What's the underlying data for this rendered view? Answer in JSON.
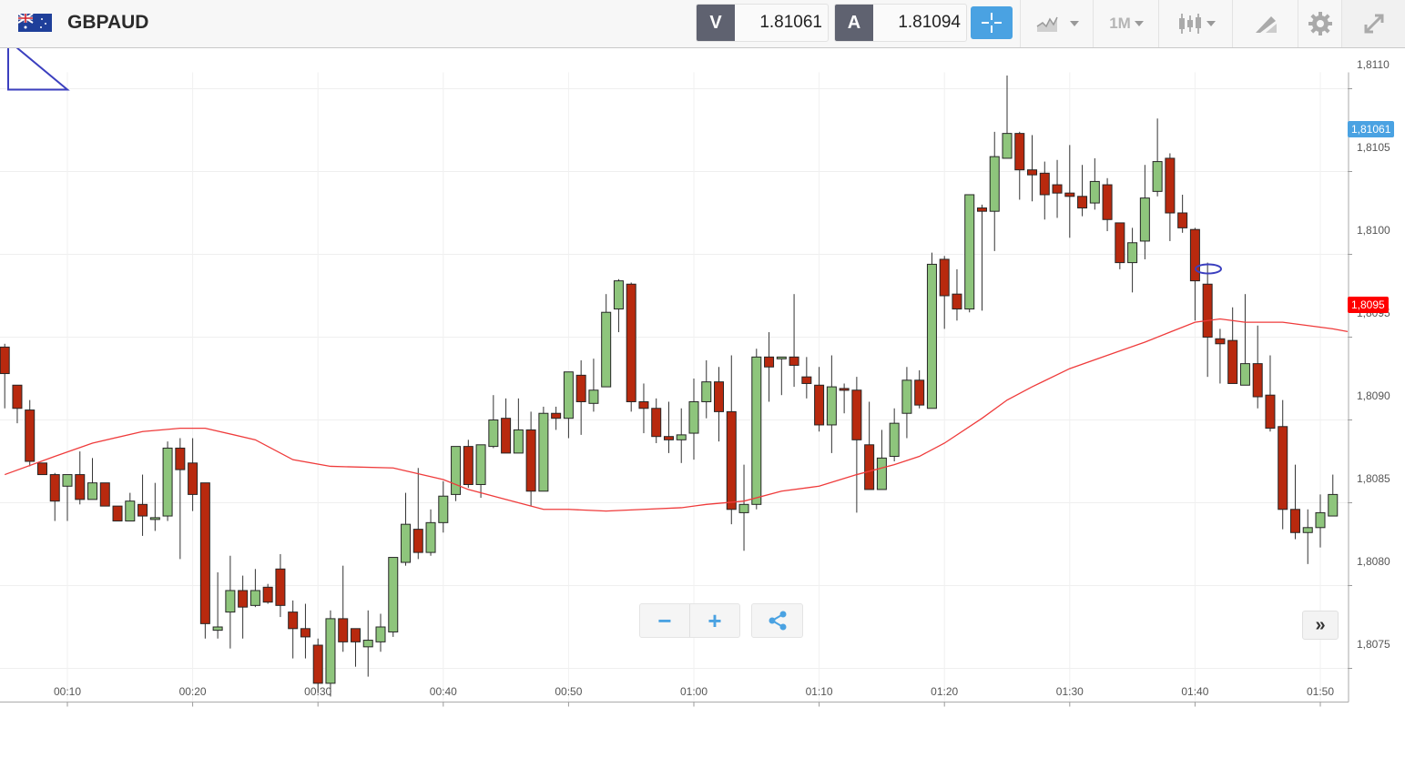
{
  "header": {
    "symbol": "GBPAUD",
    "flag_icon": "gb-au-flag-icon",
    "bid_label": "V",
    "bid_value": "1.81061",
    "ask_label": "A",
    "ask_value": "1.81094",
    "timeframe": "1M",
    "icons": [
      "crosshair-icon",
      "chart-type-icon",
      "timeframe-dropdown",
      "candlestick-icon",
      "drawing-tool-icon",
      "gear-icon",
      "fullscreen-icon"
    ]
  },
  "controls": {
    "zoom_out": "−",
    "zoom_in": "+",
    "share_icon": "share-icon",
    "scroll_end": "»"
  },
  "colors": {
    "up": "#8ec57c",
    "down": "#b8290e",
    "ma": "#ef3b3b",
    "bid_tag": "#4aa2e2",
    "ma_tag": "#ff0000",
    "accent": "#4aa2e2"
  },
  "chart_data": {
    "type": "candlestick",
    "title": "GBPAUD",
    "interval": "1M",
    "first_time": "00:05",
    "ylim": [
      1.80735,
      1.81117
    ],
    "y_ticks": [
      "1,8075",
      "1,8080",
      "1,8085",
      "1,8090",
      "1,8095",
      "1,8100",
      "1,8105",
      "1,8110"
    ],
    "y_tick_values": [
      1.8075,
      1.808,
      1.8085,
      1.809,
      1.8095,
      1.81,
      1.8105,
      1.811
    ],
    "x_ticks": [
      "00:10",
      "00:20",
      "00:30",
      "00:40",
      "00:50",
      "01:00",
      "01:10",
      "01:20",
      "01:30",
      "01:40",
      "01:50"
    ],
    "grid": true,
    "price_tags": [
      {
        "label": "1,81061",
        "value": 1.81061,
        "color": "#4aa2e2"
      },
      {
        "label": "1,8095",
        "value": 1.80955,
        "color": "#ff0000"
      }
    ],
    "ohlc_fields": [
      "open",
      "high",
      "low",
      "close"
    ],
    "candles": [
      [
        1.80944,
        1.80946,
        1.80907,
        1.80928
      ],
      [
        1.80921,
        1.80921,
        1.80898,
        1.80907
      ],
      [
        1.80906,
        1.80912,
        1.80872,
        1.80875
      ],
      [
        1.80874,
        1.80874,
        1.80867,
        1.80867
      ],
      [
        1.80867,
        1.80868,
        1.80839,
        1.80851
      ],
      [
        1.8086,
        1.80867,
        1.80839,
        1.80867
      ],
      [
        1.80867,
        1.80881,
        1.80849,
        1.80852
      ],
      [
        1.80852,
        1.80877,
        1.80852,
        1.80862
      ],
      [
        1.80862,
        1.80862,
        1.80848,
        1.80848
      ],
      [
        1.80848,
        1.80848,
        1.80839,
        1.80839
      ],
      [
        1.80839,
        1.80856,
        1.80839,
        1.80851
      ],
      [
        1.80849,
        1.80867,
        1.8083,
        1.80842
      ],
      [
        1.80841,
        1.80862,
        1.80833,
        1.80841
      ],
      [
        1.80842,
        1.80887,
        1.80839,
        1.80883
      ],
      [
        1.80883,
        1.80889,
        1.80816,
        1.8087
      ],
      [
        1.80874,
        1.80889,
        1.80845,
        1.80855
      ],
      [
        1.80862,
        1.80862,
        1.80768,
        1.80777
      ],
      [
        1.80773,
        1.80808,
        1.80768,
        1.80775
      ],
      [
        1.80784,
        1.80818,
        1.80762,
        1.80797
      ],
      [
        1.80797,
        1.80806,
        1.80768,
        1.80787
      ],
      [
        1.80788,
        1.8081,
        1.80787,
        1.80797
      ],
      [
        1.80799,
        1.80801,
        1.80789,
        1.8079
      ],
      [
        1.8081,
        1.80819,
        1.80781,
        1.80788
      ],
      [
        1.80784,
        1.80791,
        1.80756,
        1.80774
      ],
      [
        1.80774,
        1.80789,
        1.80756,
        1.80769
      ],
      [
        1.80764,
        1.80768,
        1.80735,
        1.80741
      ],
      [
        1.80741,
        1.80785,
        1.80733,
        1.8078
      ],
      [
        1.8078,
        1.80812,
        1.8076,
        1.80766
      ],
      [
        1.80774,
        1.80774,
        1.80751,
        1.80766
      ],
      [
        1.80763,
        1.80785,
        1.80745,
        1.80767
      ],
      [
        1.80766,
        1.80783,
        1.8076,
        1.80775
      ],
      [
        1.80772,
        1.80817,
        1.80769,
        1.80817
      ],
      [
        1.80814,
        1.80856,
        1.80812,
        1.80837
      ],
      [
        1.80834,
        1.80871,
        1.80816,
        1.8082
      ],
      [
        1.8082,
        1.80846,
        1.80818,
        1.80838
      ],
      [
        1.80838,
        1.80863,
        1.80832,
        1.80854
      ],
      [
        1.80855,
        1.80884,
        1.80851,
        1.80884
      ],
      [
        1.80884,
        1.80888,
        1.80859,
        1.80861
      ],
      [
        1.80861,
        1.80885,
        1.80853,
        1.80885
      ],
      [
        1.80884,
        1.80915,
        1.80883,
        1.809
      ],
      [
        1.80901,
        1.80913,
        1.8088,
        1.8088
      ],
      [
        1.8088,
        1.80913,
        1.8088,
        1.80894
      ],
      [
        1.80894,
        1.80905,
        1.80848,
        1.80857
      ],
      [
        1.80857,
        1.80908,
        1.80857,
        1.80904
      ],
      [
        1.80904,
        1.80908,
        1.80894,
        1.80901
      ],
      [
        1.80901,
        1.80929,
        1.80889,
        1.80929
      ],
      [
        1.80927,
        1.80936,
        1.80891,
        1.80911
      ],
      [
        1.8091,
        1.80937,
        1.80905,
        1.80918
      ],
      [
        1.8092,
        1.80976,
        1.8092,
        1.80965
      ],
      [
        1.80967,
        1.80985,
        1.80953,
        1.80984
      ],
      [
        1.80982,
        1.80983,
        1.80905,
        1.80911
      ],
      [
        1.80911,
        1.80922,
        1.80892,
        1.80907
      ],
      [
        1.80907,
        1.80913,
        1.80886,
        1.8089
      ],
      [
        1.8089,
        1.80911,
        1.8088,
        1.80888
      ],
      [
        1.80888,
        1.80907,
        1.80874,
        1.80891
      ],
      [
        1.80892,
        1.80925,
        1.80876,
        1.80911
      ],
      [
        1.80911,
        1.80936,
        1.80901,
        1.80923
      ],
      [
        1.80923,
        1.80932,
        1.80887,
        1.80905
      ],
      [
        1.80905,
        1.80939,
        1.80837,
        1.80846
      ],
      [
        1.80844,
        1.80873,
        1.80821,
        1.80849
      ],
      [
        1.80849,
        1.80943,
        1.80846,
        1.80938
      ],
      [
        1.80938,
        1.80953,
        1.80911,
        1.80932
      ],
      [
        1.80937,
        1.80938,
        1.80915,
        1.80938
      ],
      [
        1.80938,
        1.80976,
        1.8092,
        1.80933
      ],
      [
        1.80926,
        1.80938,
        1.80913,
        1.80922
      ],
      [
        1.80921,
        1.80932,
        1.80893,
        1.80897
      ],
      [
        1.80897,
        1.80939,
        1.8088,
        1.8092
      ],
      [
        1.80919,
        1.80922,
        1.80904,
        1.80918
      ],
      [
        1.80918,
        1.80926,
        1.80844,
        1.80888
      ],
      [
        1.80885,
        1.80911,
        1.80858,
        1.80858
      ],
      [
        1.80858,
        1.80894,
        1.80858,
        1.80877
      ],
      [
        1.80878,
        1.80907,
        1.80875,
        1.80898
      ],
      [
        1.80904,
        1.80932,
        1.80889,
        1.80924
      ],
      [
        1.80924,
        1.8093,
        1.80907,
        1.80909
      ],
      [
        1.80907,
        1.81001,
        1.80907,
        1.80994
      ],
      [
        1.80997,
        1.80999,
        1.80955,
        1.80975
      ],
      [
        1.80976,
        1.80991,
        1.8096,
        1.80967
      ],
      [
        1.80967,
        1.81036,
        1.80965,
        1.81036
      ],
      [
        1.81028,
        1.8103,
        1.80966,
        1.81026
      ],
      [
        1.81026,
        1.81074,
        1.81002,
        1.81059
      ],
      [
        1.81058,
        1.81108,
        1.81058,
        1.81073
      ],
      [
        1.81073,
        1.81074,
        1.81033,
        1.81051
      ],
      [
        1.81051,
        1.81072,
        1.81032,
        1.81048
      ],
      [
        1.81049,
        1.81056,
        1.81021,
        1.81036
      ],
      [
        1.81042,
        1.81057,
        1.81022,
        1.81037
      ],
      [
        1.81037,
        1.81066,
        1.8101,
        1.81035
      ],
      [
        1.81035,
        1.81054,
        1.81023,
        1.81028
      ],
      [
        1.81031,
        1.81058,
        1.81027,
        1.81044
      ],
      [
        1.81042,
        1.81046,
        1.81014,
        1.81021
      ],
      [
        1.81019,
        1.81019,
        1.80991,
        1.80995
      ],
      [
        1.80995,
        1.81016,
        1.80977,
        1.81007
      ],
      [
        1.81008,
        1.81054,
        1.80997,
        1.81034
      ],
      [
        1.81038,
        1.81082,
        1.81035,
        1.81056
      ],
      [
        1.81058,
        1.81061,
        1.81008,
        1.81025
      ],
      [
        1.81025,
        1.81036,
        1.81013,
        1.81016
      ],
      [
        1.81015,
        1.81016,
        1.8096,
        1.80984
      ],
      [
        1.80982,
        1.80995,
        1.80926,
        1.8095
      ],
      [
        1.80949,
        1.80955,
        1.80922,
        1.80946
      ],
      [
        1.80948,
        1.80968,
        1.80922,
        1.80922
      ],
      [
        1.80921,
        1.80976,
        1.80921,
        1.80934
      ],
      [
        1.80934,
        1.80957,
        1.80907,
        1.80914
      ],
      [
        1.80915,
        1.80939,
        1.80893,
        1.80895
      ],
      [
        1.80896,
        1.80912,
        1.80834,
        1.80846
      ],
      [
        1.80846,
        1.80873,
        1.80828,
        1.80832
      ],
      [
        1.80832,
        1.80846,
        1.80813,
        1.80835
      ],
      [
        1.80835,
        1.80855,
        1.80823,
        1.80844
      ],
      [
        1.80842,
        1.80867,
        1.80842,
        1.80855
      ]
    ],
    "moving_average": [
      [
        0,
        1.80867
      ],
      [
        4,
        1.80878
      ],
      [
        7,
        1.80886
      ],
      [
        11,
        1.80893
      ],
      [
        14,
        1.80895
      ],
      [
        16,
        1.80895
      ],
      [
        20,
        1.80888
      ],
      [
        23,
        1.80876
      ],
      [
        26,
        1.80872
      ],
      [
        31,
        1.80871
      ],
      [
        35,
        1.80864
      ],
      [
        37,
        1.80858
      ],
      [
        40,
        1.80852
      ],
      [
        43,
        1.80846
      ],
      [
        45,
        1.80846
      ],
      [
        48,
        1.80845
      ],
      [
        51,
        1.80846
      ],
      [
        54,
        1.80847
      ],
      [
        56,
        1.80849
      ],
      [
        59,
        1.80851
      ],
      [
        62,
        1.80857
      ],
      [
        65,
        1.8086
      ],
      [
        68,
        1.80867
      ],
      [
        71,
        1.80873
      ],
      [
        73,
        1.80878
      ],
      [
        75,
        1.80886
      ],
      [
        78,
        1.80901
      ],
      [
        80,
        1.80912
      ],
      [
        82,
        1.8092
      ],
      [
        85,
        1.80931
      ],
      [
        88,
        1.80939
      ],
      [
        91,
        1.80947
      ],
      [
        93,
        1.80953
      ],
      [
        95,
        1.80959
      ],
      [
        97,
        1.80961
      ],
      [
        99,
        1.80959
      ],
      [
        102,
        1.80959
      ],
      [
        106,
        1.80955
      ]
    ]
  }
}
